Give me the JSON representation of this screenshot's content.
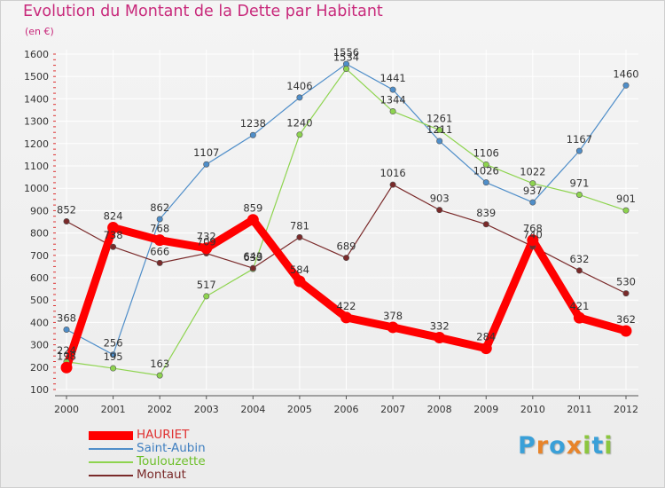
{
  "title": "Evolution du Montant de la Dette par Habitant",
  "subtitle": "(en €)",
  "logo": {
    "letters": [
      {
        "ch": "P",
        "color": "#3aa0d8"
      },
      {
        "ch": "r",
        "color": "#e8842a"
      },
      {
        "ch": "o",
        "color": "#3aa0d8"
      },
      {
        "ch": "x",
        "color": "#e8842a"
      },
      {
        "ch": "i",
        "color": "#8cc63f"
      },
      {
        "ch": "t",
        "color": "#3aa0d8"
      },
      {
        "ch": "i",
        "color": "#8cc63f"
      }
    ]
  },
  "chart_data": {
    "type": "line",
    "title": "Evolution du Montant de la Dette par Habitant",
    "subtitle": "(en €)",
    "xlabel": "",
    "ylabel": "",
    "categories": [
      "2000",
      "2001",
      "2002",
      "2003",
      "2004",
      "2005",
      "2006",
      "2007",
      "2008",
      "2009",
      "2010",
      "2011",
      "2012"
    ],
    "ylim": [
      100,
      1600
    ],
    "y_ticks": [
      100,
      200,
      300,
      400,
      500,
      600,
      700,
      800,
      900,
      1000,
      1100,
      1200,
      1300,
      1400,
      1500,
      1600
    ],
    "y_tick_labels": [
      "100",
      "200",
      "300",
      "400",
      "500",
      "600",
      "700",
      "800",
      "900",
      "1000",
      "1100",
      "1200",
      "1300",
      "1400",
      "1500",
      "1600"
    ],
    "grid": true,
    "legend_position": "bottom-left",
    "series": [
      {
        "name": "Saint-Aubin",
        "color": "#4f8ec9",
        "emphasis": false,
        "values": [
          368,
          256,
          862,
          1107,
          1238,
          1406,
          1556,
          1441,
          1211,
          1026,
          937,
          1167,
          1460
        ],
        "labels": [
          "368",
          "256",
          "862",
          "1107",
          "1238",
          "1406",
          "1556",
          "1441",
          "1211",
          "1026",
          "937",
          "1167",
          "1460"
        ]
      },
      {
        "name": "Toulouzette",
        "color": "#8ed44f",
        "emphasis": false,
        "values": [
          224,
          195,
          163,
          517,
          639,
          1240,
          1534,
          1344,
          1261,
          1106,
          1022,
          971,
          901
        ],
        "labels": [
          "224",
          "195",
          "163",
          "517",
          "639",
          "1240",
          "1534",
          "1344",
          "1261",
          "1106",
          "1022",
          "971",
          "901"
        ]
      },
      {
        "name": "Montaut",
        "color": "#7a2a2a",
        "emphasis": false,
        "values": [
          852,
          738,
          666,
          709,
          643,
          781,
          689,
          1016,
          903,
          839,
          740,
          632,
          530
        ],
        "labels": [
          "852",
          "738",
          "666",
          "709",
          "643",
          "781",
          "689",
          "1016",
          "903",
          "839",
          "740",
          "632",
          "530"
        ]
      },
      {
        "name": "HAURIET",
        "color": "#ff0000",
        "emphasis": true,
        "values": [
          198,
          824,
          768,
          732,
          859,
          584,
          422,
          378,
          332,
          284,
          768,
          421,
          362
        ],
        "labels": [
          "198",
          "824",
          "768",
          "732",
          "859",
          "584",
          "422",
          "378",
          "332",
          "284",
          "768",
          "421",
          "362"
        ]
      }
    ],
    "legend_order": [
      "HAURIET",
      "Saint-Aubin",
      "Toulouzette",
      "Montaut"
    ]
  }
}
